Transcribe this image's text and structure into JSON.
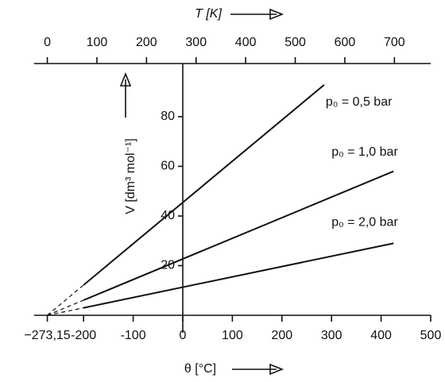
{
  "chart_data": {
    "type": "line",
    "title": "T [K]",
    "x_label": "θ [°C]",
    "y_label": "V [dm³ mol⁻¹]",
    "xlim": [
      -300,
      500
    ],
    "xticks": [
      {
        "value": -273.15,
        "label": "−273,15"
      },
      -200,
      -100,
      0,
      100,
      200,
      300,
      400,
      500
    ],
    "x2lim": [
      -26.85,
      773.15
    ],
    "x2ticks": [
      0,
      100,
      200,
      300,
      400,
      500,
      600,
      700
    ],
    "ylim": [
      0,
      101.4
    ],
    "yticks": [
      20,
      40,
      60,
      80
    ],
    "dashed_below": -200,
    "color": "#111111",
    "series": [
      {
        "name": "p₀ = 0,5 bar",
        "x": [
          -273.15,
          -200,
          285
        ],
        "values": [
          0,
          12.2,
          92.8
        ]
      },
      {
        "name": "p₀ = 1,0 bar",
        "x": [
          -273.15,
          -200,
          425
        ],
        "values": [
          0,
          6.1,
          58.0
        ]
      },
      {
        "name": "p₀ = 2,0 bar",
        "x": [
          -273.15,
          -200,
          425
        ],
        "values": [
          0,
          3.0,
          29.0
        ]
      }
    ]
  }
}
